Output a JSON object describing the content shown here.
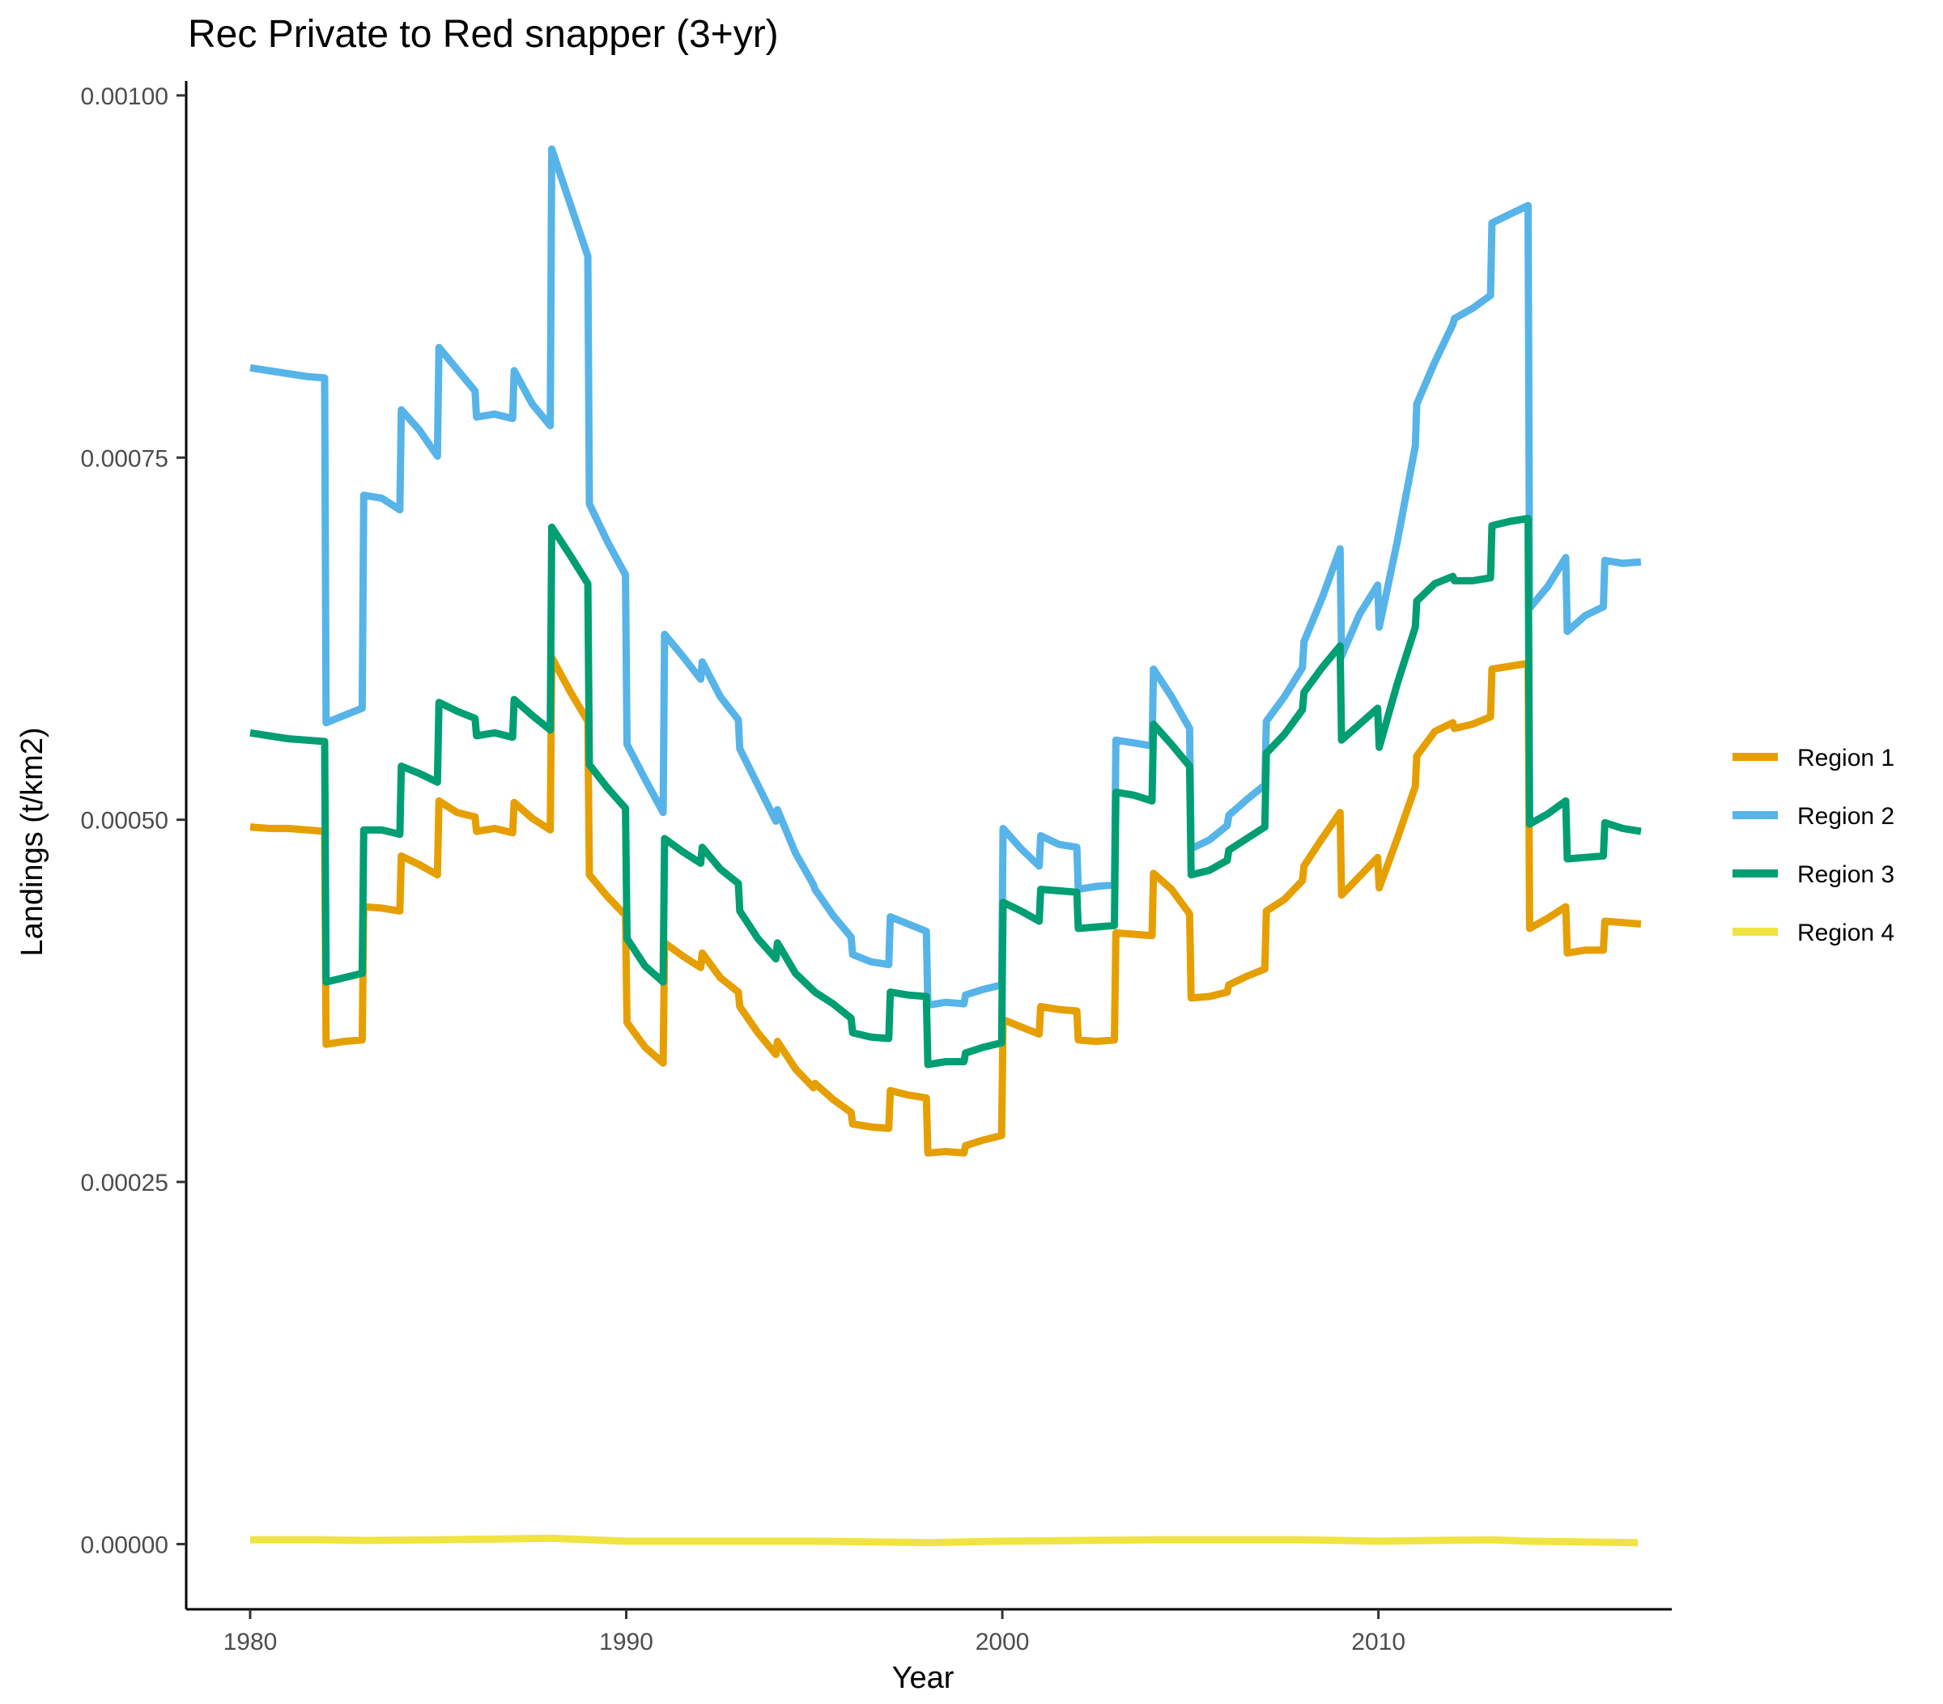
{
  "chart_data": {
    "type": "line",
    "title": "Rec Private to Red snapper (3+yr)",
    "xlabel": "Year",
    "ylabel": "Landings (t/km2)",
    "xlim": [
      1978.3,
      2017.8
    ],
    "ylim": [
      -4.5e-05,
      0.00101
    ],
    "x_ticks": [
      1980,
      1990,
      2000,
      2010
    ],
    "y_ticks": [
      0.0,
      0.00025,
      0.0005,
      0.00075,
      0.001
    ],
    "y_tick_labels": [
      "0.00000",
      "0.00025",
      "0.00050",
      "0.00075",
      "0.00100"
    ],
    "grid": false,
    "legend_position": "right",
    "series": [
      {
        "name": "Region 1",
        "color": "#E69F00",
        "x": [
          1980.0,
          1980.5,
          1981.0,
          1981.5,
          1981.98,
          1982.02,
          1982.5,
          1982.98,
          1983.02,
          1983.5,
          1983.98,
          1984.02,
          1984.5,
          1984.98,
          1985.02,
          1985.5,
          1985.98,
          1986.02,
          1986.5,
          1986.98,
          1987.02,
          1987.5,
          1987.98,
          1988.02,
          1988.5,
          1988.98,
          1989.02,
          1989.5,
          1989.98,
          1990.02,
          1990.5,
          1990.98,
          1991.02,
          1991.5,
          1991.98,
          1992.02,
          1992.5,
          1992.98,
          1993.02,
          1993.5,
          1993.98,
          1994.02,
          1994.5,
          1994.98,
          1995.02,
          1995.5,
          1995.98,
          1996.02,
          1996.5,
          1996.98,
          1997.02,
          1997.5,
          1997.98,
          1998.02,
          1998.5,
          1998.98,
          1999.02,
          1999.5,
          1999.98,
          2000.02,
          2000.5,
          2000.98,
          2001.02,
          2001.5,
          2001.98,
          2002.02,
          2002.5,
          2002.98,
          2003.02,
          2003.5,
          2003.98,
          2004.02,
          2004.5,
          2004.98,
          2005.02,
          2005.5,
          2005.98,
          2006.02,
          2006.5,
          2006.98,
          2007.02,
          2007.5,
          2007.98,
          2008.02,
          2008.5,
          2008.98,
          2009.02,
          2009.5,
          2009.98,
          2010.02,
          2010.5,
          2010.98,
          2011.02,
          2011.5,
          2011.98,
          2012.02,
          2012.5,
          2012.98,
          2013.02,
          2013.5,
          2013.98,
          2014.02,
          2014.5,
          2014.98,
          2015.02,
          2015.5,
          2015.98,
          2016.02,
          2016.5,
          2016.98
        ],
        "values": [
          0.000495,
          0.000494,
          0.000494,
          0.000493,
          0.000492,
          0.000345,
          0.000347,
          0.000348,
          0.00044,
          0.000439,
          0.000437,
          0.000475,
          0.000469,
          0.000462,
          0.000513,
          0.000505,
          0.000502,
          0.000492,
          0.000494,
          0.000491,
          0.000512,
          0.000501,
          0.000493,
          0.000612,
          0.000589,
          0.000568,
          0.000462,
          0.000447,
          0.000434,
          0.00036,
          0.000343,
          0.000332,
          0.000415,
          0.000406,
          0.000398,
          0.000408,
          0.000391,
          0.000381,
          0.000371,
          0.000353,
          0.000338,
          0.000347,
          0.000328,
          0.000315,
          0.000318,
          0.000307,
          0.000298,
          0.00029,
          0.000288,
          0.000287,
          0.000313,
          0.00031,
          0.000308,
          0.00027,
          0.000271,
          0.00027,
          0.000275,
          0.000279,
          0.000282,
          0.000362,
          0.000357,
          0.000352,
          0.000371,
          0.000369,
          0.000368,
          0.000348,
          0.000347,
          0.000348,
          0.000422,
          0.000421,
          0.00042,
          0.000463,
          0.000452,
          0.000435,
          0.000377,
          0.000378,
          0.000381,
          0.000386,
          0.000392,
          0.000397,
          0.000437,
          0.000445,
          0.000458,
          0.000468,
          0.000487,
          0.000505,
          0.000448,
          0.000461,
          0.000474,
          0.000453,
          0.000487,
          0.000523,
          0.000544,
          0.000561,
          0.000567,
          0.000563,
          0.000566,
          0.000571,
          0.000604,
          0.000606,
          0.000608,
          0.000425,
          0.000432,
          0.00044,
          0.000408,
          0.00041,
          0.00041,
          0.00043,
          0.000429,
          0.000428
        ]
      },
      {
        "name": "Region 2",
        "color": "#56B4E9",
        "x": [
          1980.0,
          1980.5,
          1981.0,
          1981.5,
          1981.98,
          1982.02,
          1982.5,
          1982.98,
          1983.02,
          1983.5,
          1983.98,
          1984.02,
          1984.5,
          1984.98,
          1985.02,
          1985.5,
          1985.98,
          1986.02,
          1986.5,
          1986.98,
          1987.02,
          1987.5,
          1987.98,
          1988.02,
          1988.5,
          1988.98,
          1989.02,
          1989.5,
          1989.98,
          1990.02,
          1990.5,
          1990.98,
          1991.02,
          1991.5,
          1991.98,
          1992.02,
          1992.5,
          1992.98,
          1993.02,
          1993.5,
          1993.98,
          1994.02,
          1994.5,
          1994.98,
          1995.02,
          1995.5,
          1995.98,
          1996.02,
          1996.5,
          1996.98,
          1997.02,
          1997.5,
          1997.98,
          1998.02,
          1998.5,
          1998.98,
          1999.02,
          1999.5,
          1999.98,
          2000.02,
          2000.5,
          2000.98,
          2001.02,
          2001.5,
          2001.98,
          2002.02,
          2002.5,
          2002.98,
          2003.02,
          2003.5,
          2003.98,
          2004.02,
          2004.5,
          2004.98,
          2005.02,
          2005.5,
          2005.98,
          2006.02,
          2006.5,
          2006.98,
          2007.02,
          2007.5,
          2007.98,
          2008.02,
          2008.5,
          2008.98,
          2009.02,
          2009.5,
          2009.98,
          2010.02,
          2010.5,
          2010.98,
          2011.02,
          2011.5,
          2011.98,
          2012.02,
          2012.5,
          2012.98,
          2013.02,
          2013.5,
          2013.98,
          2014.02,
          2014.5,
          2014.98,
          2015.02,
          2015.5,
          2015.98,
          2016.02,
          2016.5,
          2016.98
        ],
        "values": [
          0.000812,
          0.00081,
          0.000808,
          0.000806,
          0.000805,
          0.000567,
          0.000572,
          0.000577,
          0.000724,
          0.000722,
          0.000714,
          0.000783,
          0.000769,
          0.000751,
          0.000826,
          0.000811,
          0.000796,
          0.000778,
          0.00078,
          0.000777,
          0.00081,
          0.000787,
          0.000772,
          0.000963,
          0.000926,
          0.000889,
          0.000718,
          0.000692,
          0.000669,
          0.000552,
          0.000528,
          0.000505,
          0.000628,
          0.000613,
          0.000597,
          0.000609,
          0.000585,
          0.000569,
          0.000549,
          0.000524,
          0.000499,
          0.000507,
          0.000477,
          0.000455,
          0.000452,
          0.000434,
          0.000419,
          0.000407,
          0.000402,
          0.0004,
          0.000433,
          0.000428,
          0.000423,
          0.000372,
          0.000374,
          0.000373,
          0.000379,
          0.000383,
          0.000386,
          0.000494,
          0.00048,
          0.000468,
          0.000489,
          0.000483,
          0.000481,
          0.000452,
          0.000454,
          0.000455,
          0.000555,
          0.000553,
          0.000551,
          0.000604,
          0.000585,
          0.000563,
          0.00048,
          0.000486,
          0.000496,
          0.000503,
          0.000514,
          0.000524,
          0.000568,
          0.000585,
          0.000605,
          0.000623,
          0.000653,
          0.000687,
          0.000613,
          0.000642,
          0.000662,
          0.000633,
          0.000692,
          0.000758,
          0.000787,
          0.000816,
          0.000842,
          0.000846,
          0.000853,
          0.000862,
          0.000912,
          0.000918,
          0.000924,
          0.000646,
          0.000661,
          0.000681,
          0.00063,
          0.000641,
          0.000647,
          0.000679,
          0.000677,
          0.000678
        ]
      },
      {
        "name": "Region 3",
        "color": "#009E73",
        "x": [
          1980.0,
          1980.5,
          1981.0,
          1981.5,
          1981.98,
          1982.02,
          1982.5,
          1982.98,
          1983.02,
          1983.5,
          1983.98,
          1984.02,
          1984.5,
          1984.98,
          1985.02,
          1985.5,
          1985.98,
          1986.02,
          1986.5,
          1986.98,
          1987.02,
          1987.5,
          1987.98,
          1988.02,
          1988.5,
          1988.98,
          1989.02,
          1989.5,
          1989.98,
          1990.02,
          1990.5,
          1990.98,
          1991.02,
          1991.5,
          1991.98,
          1992.02,
          1992.5,
          1992.98,
          1993.02,
          1993.5,
          1993.98,
          1994.02,
          1994.5,
          1994.98,
          1995.02,
          1995.5,
          1995.98,
          1996.02,
          1996.5,
          1996.98,
          1997.02,
          1997.5,
          1997.98,
          1998.02,
          1998.5,
          1998.98,
          1999.02,
          1999.5,
          1999.98,
          2000.02,
          2000.5,
          2000.98,
          2001.02,
          2001.5,
          2001.98,
          2002.02,
          2002.5,
          2002.98,
          2003.02,
          2003.5,
          2003.98,
          2004.02,
          2004.5,
          2004.98,
          2005.02,
          2005.5,
          2005.98,
          2006.02,
          2006.5,
          2006.98,
          2007.02,
          2007.5,
          2007.98,
          2008.02,
          2008.5,
          2008.98,
          2009.02,
          2009.5,
          2009.98,
          2010.02,
          2010.5,
          2010.98,
          2011.02,
          2011.5,
          2011.98,
          2012.02,
          2012.5,
          2012.98,
          2013.02,
          2013.5,
          2013.98,
          2014.02,
          2014.5,
          2014.98,
          2015.02,
          2015.5,
          2015.98,
          2016.02,
          2016.5,
          2016.98
        ],
        "values": [
          0.00056,
          0.000558,
          0.000556,
          0.000555,
          0.000554,
          0.000388,
          0.000391,
          0.000394,
          0.000493,
          0.000493,
          0.00049,
          0.000537,
          0.000532,
          0.000526,
          0.000581,
          0.000575,
          0.00057,
          0.000558,
          0.00056,
          0.000557,
          0.000583,
          0.000572,
          0.000562,
          0.000702,
          0.000683,
          0.000663,
          0.000538,
          0.000522,
          0.000508,
          0.000418,
          0.000399,
          0.000388,
          0.000487,
          0.000478,
          0.00047,
          0.000481,
          0.000466,
          0.000456,
          0.000437,
          0.000418,
          0.000404,
          0.000415,
          0.000394,
          0.000382,
          0.000381,
          0.000373,
          0.000363,
          0.000353,
          0.00035,
          0.000349,
          0.000381,
          0.000379,
          0.000378,
          0.000331,
          0.000333,
          0.000333,
          0.000339,
          0.000343,
          0.000346,
          0.000443,
          0.000437,
          0.00043,
          0.000452,
          0.000451,
          0.00045,
          0.000425,
          0.000426,
          0.000427,
          0.000519,
          0.000517,
          0.000513,
          0.000566,
          0.000552,
          0.000537,
          0.000462,
          0.000465,
          0.000472,
          0.000479,
          0.000487,
          0.000495,
          0.000546,
          0.000559,
          0.000576,
          0.000588,
          0.000605,
          0.00062,
          0.000555,
          0.000566,
          0.000577,
          0.00055,
          0.000594,
          0.000633,
          0.000651,
          0.000663,
          0.000668,
          0.000665,
          0.000665,
          0.000667,
          0.000703,
          0.000706,
          0.000708,
          0.000497,
          0.000504,
          0.000513,
          0.000473,
          0.000474,
          0.000475,
          0.000498,
          0.000494,
          0.000492
        ]
      },
      {
        "name": "Region 4",
        "color": "#F0E442",
        "x": [
          1980.0,
          1982.0,
          1983.0,
          1985.0,
          1988.0,
          1990.0,
          1995.0,
          1998.0,
          2000.0,
          2004.0,
          2008.0,
          2010.0,
          2013.0,
          2014.0,
          2016.9
        ],
        "values": [
          3e-06,
          3e-06,
          2.5e-06,
          3e-06,
          4e-06,
          2e-06,
          2e-06,
          1e-06,
          2e-06,
          3e-06,
          3e-06,
          2e-06,
          3e-06,
          2e-06,
          1e-06
        ]
      }
    ]
  }
}
